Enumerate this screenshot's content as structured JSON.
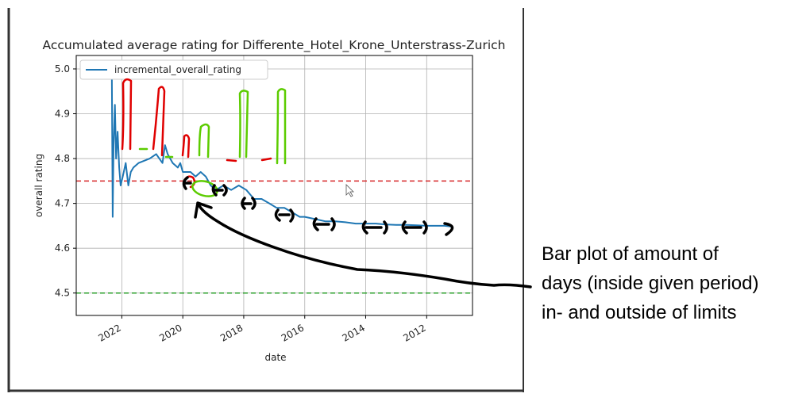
{
  "chart_data": {
    "type": "line",
    "title": "Accumulated average rating for Differente_Hotel_Krone_Unterstrass-Zurich",
    "xlabel": "date",
    "ylabel": "overall rating",
    "x_axis_reversed": true,
    "xlim": [
      "2023-07-01",
      "2010-07-01"
    ],
    "ylim": [
      4.45,
      5.03
    ],
    "xticks": [
      "2022",
      "2020",
      "2018",
      "2016",
      "2014",
      "2012"
    ],
    "yticks": [
      "4.5",
      "4.6",
      "4.7",
      "4.8",
      "4.9",
      "5.0"
    ],
    "grid": true,
    "legend_position": "upper-left",
    "series": [
      {
        "name": "incremental_overall_rating",
        "color": "#1f77b4",
        "points": [
          [
            "2022-05-01",
            5.0
          ],
          [
            "2022-04-20",
            4.67
          ],
          [
            "2022-04-10",
            4.83
          ],
          [
            "2022-03-25",
            4.92
          ],
          [
            "2022-03-10",
            4.8
          ],
          [
            "2022-02-20",
            4.86
          ],
          [
            "2022-02-01",
            4.78
          ],
          [
            "2022-01-15",
            4.74
          ],
          [
            "2021-12-20",
            4.76
          ],
          [
            "2021-11-15",
            4.79
          ],
          [
            "2021-10-15",
            4.74
          ],
          [
            "2021-09-15",
            4.77
          ],
          [
            "2021-08-15",
            4.78
          ],
          [
            "2021-06-15",
            4.79
          ],
          [
            "2021-02-01",
            4.8
          ],
          [
            "2020-11-15",
            4.81
          ],
          [
            "2020-09-01",
            4.79
          ],
          [
            "2020-08-01",
            4.83
          ],
          [
            "2020-07-01",
            4.81
          ],
          [
            "2020-05-01",
            4.79
          ],
          [
            "2020-03-01",
            4.78
          ],
          [
            "2020-02-01",
            4.79
          ],
          [
            "2020-01-01",
            4.77
          ],
          [
            "2019-10-01",
            4.77
          ],
          [
            "2019-08-01",
            4.76
          ],
          [
            "2019-06-01",
            4.77
          ],
          [
            "2019-04-01",
            4.76
          ],
          [
            "2019-02-01",
            4.74
          ],
          [
            "2018-12-01",
            4.73
          ],
          [
            "2018-09-01",
            4.74
          ],
          [
            "2018-06-01",
            4.73
          ],
          [
            "2018-03-01",
            4.74
          ],
          [
            "2017-12-01",
            4.73
          ],
          [
            "2017-09-01",
            4.71
          ],
          [
            "2017-06-01",
            4.71
          ],
          [
            "2017-03-01",
            4.7
          ],
          [
            "2016-12-01",
            4.69
          ],
          [
            "2016-09-01",
            4.69
          ],
          [
            "2016-06-01",
            4.68
          ],
          [
            "2016-03-01",
            4.67
          ],
          [
            "2016-01-01",
            4.67
          ],
          [
            "2015-09-01",
            4.665
          ],
          [
            "2015-05-01",
            4.66
          ],
          [
            "2015-01-01",
            4.66
          ],
          [
            "2014-09-01",
            4.658
          ],
          [
            "2014-05-01",
            4.655
          ],
          [
            "2014-01-01",
            4.655
          ],
          [
            "2013-09-01",
            4.655
          ],
          [
            "2013-05-01",
            4.653
          ],
          [
            "2013-01-01",
            4.652
          ],
          [
            "2012-09-01",
            4.652
          ],
          [
            "2012-05-01",
            4.651
          ],
          [
            "2012-01-01",
            4.65
          ],
          [
            "2011-09-01",
            4.65
          ],
          [
            "2011-06-01",
            4.65
          ],
          [
            "2011-03-01",
            4.648
          ]
        ]
      }
    ],
    "hlines": [
      {
        "y": 4.75,
        "color": "#d62728",
        "style": "dashed"
      },
      {
        "y": 4.5,
        "color": "#2ca02c",
        "style": "dashed"
      }
    ]
  },
  "annotation": {
    "lines": [
      "Bar plot of amount of",
      "days (inside given period)",
      "in- and outside of limits"
    ]
  },
  "colors": {
    "red_marks": "#e00000",
    "green_marks": "#5ccc00",
    "ink": "#000000"
  }
}
